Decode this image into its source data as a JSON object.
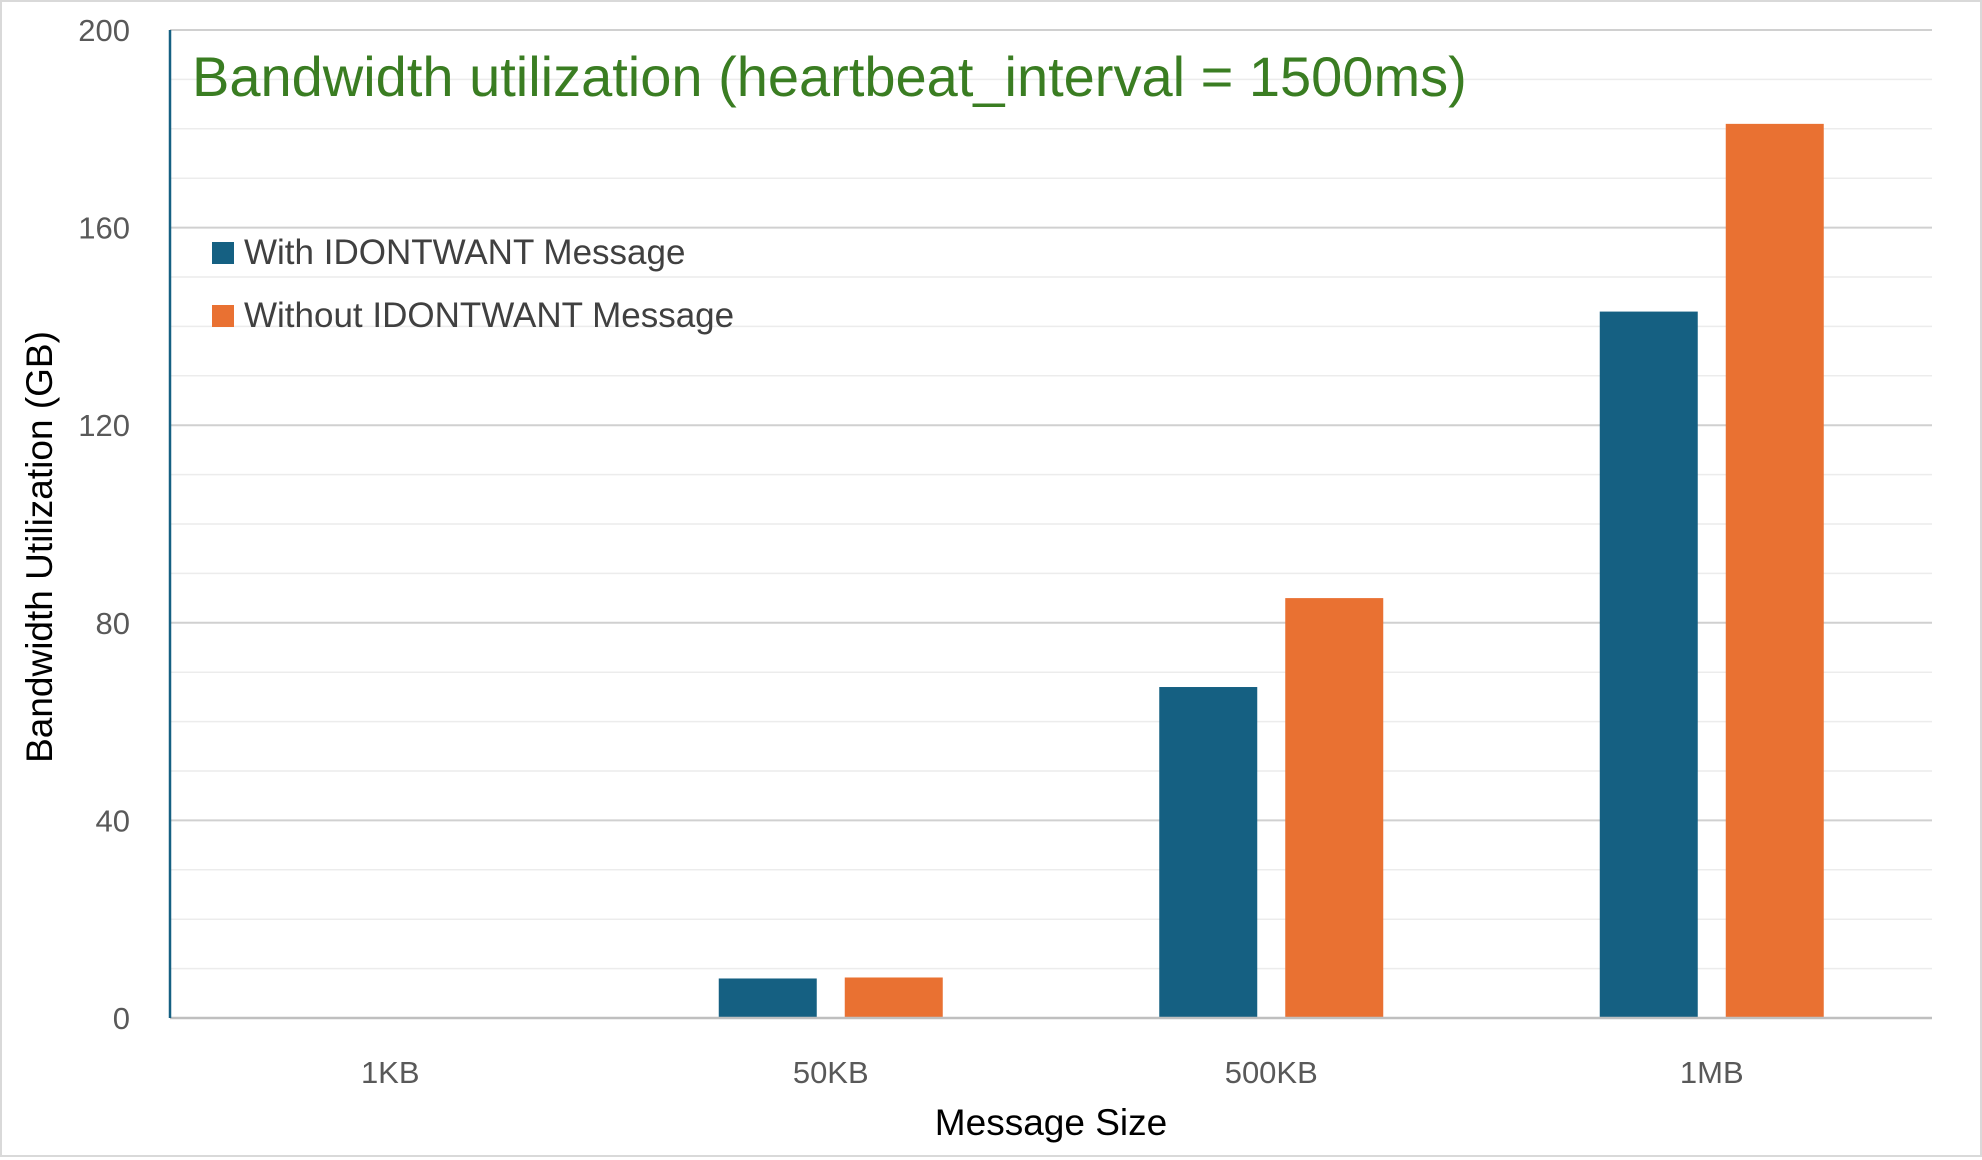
{
  "chart_data": {
    "type": "bar",
    "title": "Bandwidth utilization (heartbeat_interval = 1500ms)",
    "xlabel": "Message Size",
    "ylabel": "Bandwidth Utilization (GB)",
    "categories": [
      "1KB",
      "50KB",
      "500KB",
      "1MB"
    ],
    "series": [
      {
        "name": "With IDONTWANT Message",
        "values": [
          0,
          8,
          67,
          143
        ],
        "color": "#156082"
      },
      {
        "name": "Without IDONTWANT Message",
        "values": [
          0,
          8.2,
          85,
          181
        ],
        "color": "#E97132"
      }
    ],
    "ylim": [
      0,
      200
    ],
    "yticks": [
      0,
      40,
      80,
      120,
      160,
      200
    ],
    "grid": true,
    "legend_position": "top-left",
    "title_color": "#3A7D22"
  }
}
